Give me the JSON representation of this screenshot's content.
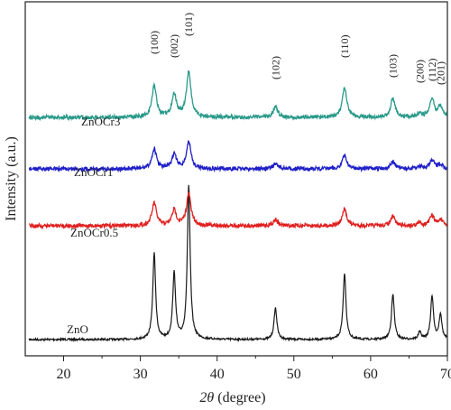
{
  "chart_data": {
    "type": "line",
    "title": "",
    "xlabel": "2θ (degree)",
    "xlabel_theta": "2θ",
    "xlabel_rest": " (degree)",
    "ylabel": "Intensity (a.u.)",
    "xlim": [
      15,
      70
    ],
    "xticks": [
      "20",
      "30",
      "40",
      "50",
      "60",
      "70"
    ],
    "grid": false,
    "legend": "none",
    "peak_labels": [
      {
        "text": "(100)",
        "x": 31.8
      },
      {
        "text": "(002)",
        "x": 34.4
      },
      {
        "text": "(101)",
        "x": 36.3
      },
      {
        "text": "(102)",
        "x": 47.6
      },
      {
        "text": "(110)",
        "x": 56.6
      },
      {
        "text": "(103)",
        "x": 62.9
      },
      {
        "text": "(200)",
        "x": 66.4
      },
      {
        "text": "(112)",
        "x": 68.0
      },
      {
        "text": "(201)",
        "x": 69.1
      }
    ],
    "series": [
      {
        "name": "ZnO",
        "color": "#1a1a1a",
        "peaks": [
          [
            31.8,
            95
          ],
          [
            34.4,
            73
          ],
          [
            36.3,
            170
          ],
          [
            47.6,
            35
          ],
          [
            56.6,
            73
          ],
          [
            62.9,
            50
          ],
          [
            66.4,
            8
          ],
          [
            68.0,
            48
          ],
          [
            69.1,
            28
          ]
        ]
      },
      {
        "name": "ZnOCr0.5",
        "color": "#e02020",
        "peaks": [
          [
            31.8,
            25
          ],
          [
            34.4,
            17
          ],
          [
            36.3,
            35
          ],
          [
            47.6,
            7
          ],
          [
            56.6,
            18
          ],
          [
            62.9,
            10
          ],
          [
            66.4,
            3
          ],
          [
            68.0,
            11
          ],
          [
            69.1,
            6
          ]
        ]
      },
      {
        "name": "ZnOCr1",
        "color": "#1f1fc8",
        "peaks": [
          [
            31.8,
            22
          ],
          [
            34.4,
            16
          ],
          [
            36.3,
            30
          ],
          [
            47.6,
            6
          ],
          [
            56.6,
            15
          ],
          [
            62.9,
            8
          ],
          [
            66.4,
            3
          ],
          [
            68.0,
            9
          ],
          [
            69.1,
            5
          ]
        ]
      },
      {
        "name": "ZnOCr3",
        "color": "#2a9a8a",
        "peaks": [
          [
            31.8,
            35
          ],
          [
            34.4,
            26
          ],
          [
            36.3,
            50
          ],
          [
            47.6,
            12
          ],
          [
            56.6,
            32
          ],
          [
            62.9,
            21
          ],
          [
            66.4,
            5
          ],
          [
            68.0,
            20
          ],
          [
            69.1,
            12
          ]
        ]
      }
    ]
  }
}
